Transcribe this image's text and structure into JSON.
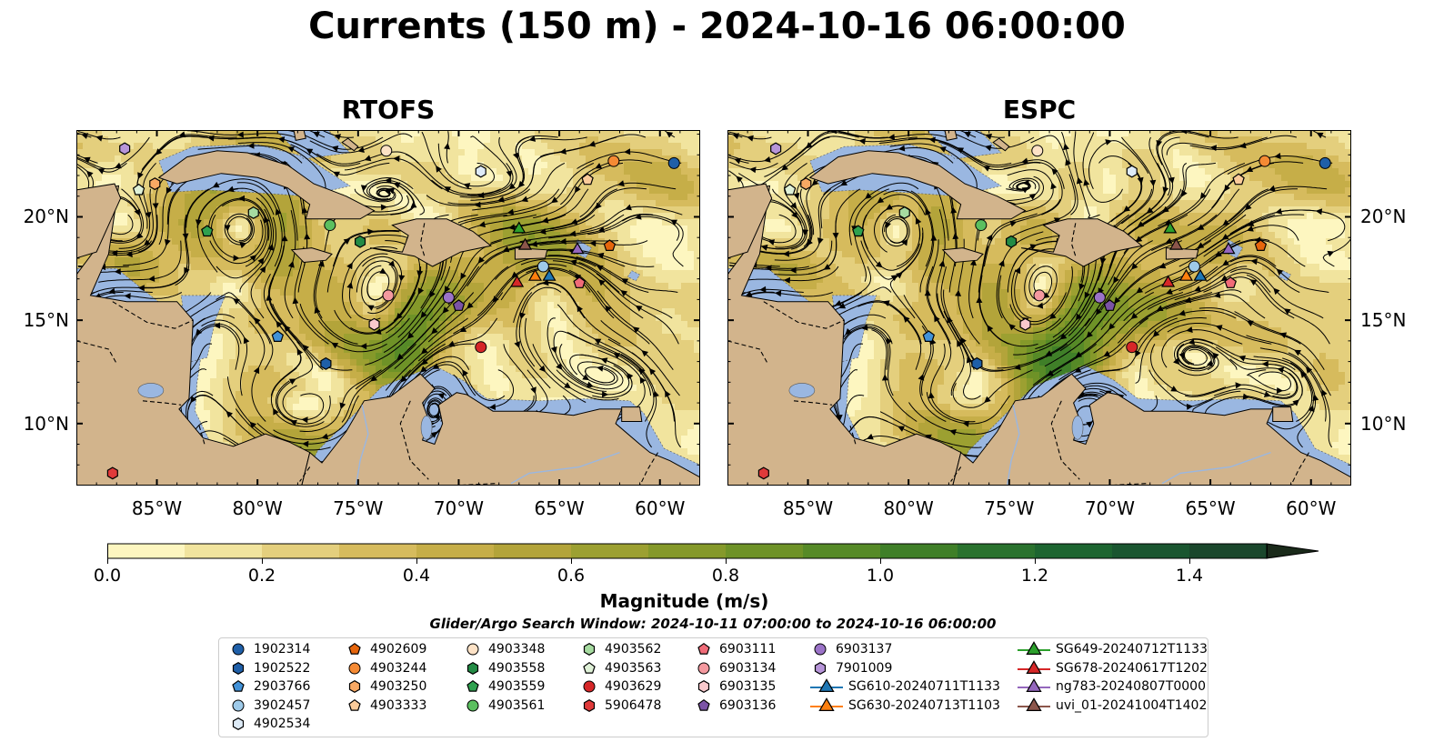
{
  "figure": {
    "title": "Currents (150 m) - 2024-10-16 06:00:00"
  },
  "panels": [
    {
      "title": "RTOFS"
    },
    {
      "title": "ESPC"
    }
  ],
  "map": {
    "extent_lon": [
      -89,
      -58
    ],
    "extent_lat": [
      7,
      24.2
    ],
    "x_ticks": [
      "85°W",
      "80°W",
      "75°W",
      "70°W",
      "65°W",
      "60°W"
    ],
    "y_ticks": [
      "20°N",
      "15°N",
      "10°N"
    ],
    "colors": {
      "land": "#d2b48c",
      "shallow_water": "#9ab7e1",
      "coast": "#000000"
    }
  },
  "colorbar": {
    "label": "Magnitude (m/s)",
    "ticks": [
      "0.0",
      "0.2",
      "0.4",
      "0.6",
      "0.8",
      "1.0",
      "1.2",
      "1.4"
    ],
    "range": [
      0,
      1.5
    ],
    "extend": "max",
    "colors": [
      "#fdf6c0",
      "#f1e49e",
      "#e4cf7d",
      "#d6bb5d",
      "#c6ae48",
      "#b3a43a",
      "#9ca031",
      "#85992a",
      "#6e9227",
      "#568a27",
      "#3f7f28",
      "#2a722e",
      "#1d6530",
      "#1a5630",
      "#1a472c",
      "#1a3a25",
      "#1a2a1a"
    ]
  },
  "search_window": "Glider/Argo Search Window: 2024-10-11 07:00:00 to 2024-10-16 06:00:00",
  "legend": [
    {
      "label": "1902314",
      "shape": "circle",
      "color": "#1f5fa8"
    },
    {
      "label": "1902522",
      "shape": "hexagon",
      "color": "#1f5fa8"
    },
    {
      "label": "2903766",
      "shape": "pentagon",
      "color": "#4292d8"
    },
    {
      "label": "3902457",
      "shape": "circle",
      "color": "#9ecae9"
    },
    {
      "label": "4902534",
      "shape": "hexagon",
      "color": "#deebf7"
    },
    {
      "label": "4902609",
      "shape": "pentagon",
      "color": "#e6650c"
    },
    {
      "label": "4903244",
      "shape": "circle",
      "color": "#f58a34"
    },
    {
      "label": "4903250",
      "shape": "hexagon",
      "color": "#f9a964"
    },
    {
      "label": "4903333",
      "shape": "pentagon",
      "color": "#fbcb9a"
    },
    {
      "label": "4903348",
      "shape": "circle",
      "color": "#fde2c6"
    },
    {
      "label": "4903558",
      "shape": "hexagon",
      "color": "#238b45"
    },
    {
      "label": "4903559",
      "shape": "pentagon",
      "color": "#2fa14f"
    },
    {
      "label": "4903561",
      "shape": "circle",
      "color": "#5bbf5f"
    },
    {
      "label": "4903562",
      "shape": "hexagon",
      "color": "#a6dba0"
    },
    {
      "label": "4903563",
      "shape": "pentagon",
      "color": "#dff1d7"
    },
    {
      "label": "4903629",
      "shape": "circle",
      "color": "#d62728"
    },
    {
      "label": "5906478",
      "shape": "hexagon",
      "color": "#e03a3a"
    },
    {
      "label": "6903111",
      "shape": "pentagon",
      "color": "#f06b78"
    },
    {
      "label": "6903134",
      "shape": "circle",
      "color": "#f4999f"
    },
    {
      "label": "6903135",
      "shape": "hexagon",
      "color": "#f9c9cc"
    },
    {
      "label": "6903136",
      "shape": "pentagon",
      "color": "#7b53a6"
    },
    {
      "label": "6903137",
      "shape": "circle",
      "color": "#9b73c8"
    },
    {
      "label": "7901009",
      "shape": "hexagon",
      "color": "#b795d9"
    },
    {
      "label": "SG610-20240711T1133",
      "shape": "triangle",
      "color": "#1f77b4"
    },
    {
      "label": "SG630-20240713T1103",
      "shape": "triangle",
      "color": "#ff7f0e"
    },
    {
      "label": "SG649-20240712T1133",
      "shape": "triangle",
      "color": "#2ca02c"
    },
    {
      "label": "SG678-20240617T1202",
      "shape": "triangle",
      "color": "#d62728"
    },
    {
      "label": "ng783-20240807T0000",
      "shape": "triangle",
      "color": "#9467bd"
    },
    {
      "label": "uvi_01-20241004T1402",
      "shape": "triangle",
      "color": "#8c564b"
    }
  ],
  "markers": [
    {
      "name": "1902314",
      "lon": -59.3,
      "lat": 22.6
    },
    {
      "name": "1902522",
      "lon": -76.6,
      "lat": 12.9
    },
    {
      "name": "2903766",
      "lon": -79.0,
      "lat": 14.2
    },
    {
      "name": "3902457",
      "lon": -65.8,
      "lat": 17.6
    },
    {
      "name": "4902534",
      "lon": -68.9,
      "lat": 22.2
    },
    {
      "name": "4902609",
      "lon": -62.5,
      "lat": 18.6
    },
    {
      "name": "4903244",
      "lon": -62.3,
      "lat": 22.7
    },
    {
      "name": "4903250",
      "lon": -85.1,
      "lat": 21.6
    },
    {
      "name": "4903333",
      "lon": -63.6,
      "lat": 21.8
    },
    {
      "name": "4903348",
      "lon": -73.6,
      "lat": 23.2
    },
    {
      "name": "4903558",
      "lon": -74.9,
      "lat": 18.8
    },
    {
      "name": "4903559",
      "lon": -82.5,
      "lat": 19.3
    },
    {
      "name": "4903561",
      "lon": -76.4,
      "lat": 19.6
    },
    {
      "name": "4903562",
      "lon": -80.2,
      "lat": 20.2
    },
    {
      "name": "4903563",
      "lon": -85.9,
      "lat": 21.3
    },
    {
      "name": "4903629",
      "lon": -68.9,
      "lat": 13.7
    },
    {
      "name": "5906478",
      "lon": -87.2,
      "lat": 7.6
    },
    {
      "name": "6903111",
      "lon": -64.0,
      "lat": 16.8
    },
    {
      "name": "6903134",
      "lon": -73.5,
      "lat": 16.2
    },
    {
      "name": "6903135",
      "lon": -74.2,
      "lat": 14.8
    },
    {
      "name": "6903136",
      "lon": -70.0,
      "lat": 15.7
    },
    {
      "name": "6903137",
      "lon": -70.5,
      "lat": 16.1
    },
    {
      "name": "7901009",
      "lon": -86.6,
      "lat": 23.3
    },
    {
      "name": "SG610-20240711T1133",
      "lon": -65.5,
      "lat": 17.1
    },
    {
      "name": "SG630-20240713T1103",
      "lon": -66.2,
      "lat": 17.1
    },
    {
      "name": "SG649-20240712T1133",
      "lon": -67.0,
      "lat": 19.4
    },
    {
      "name": "SG678-20240617T1202",
      "lon": -67.1,
      "lat": 16.8
    },
    {
      "name": "ng783-20240807T0000",
      "lon": -64.1,
      "lat": 18.4
    },
    {
      "name": "uvi_01-20241004T1402",
      "lon": -66.7,
      "lat": 18.6
    }
  ]
}
